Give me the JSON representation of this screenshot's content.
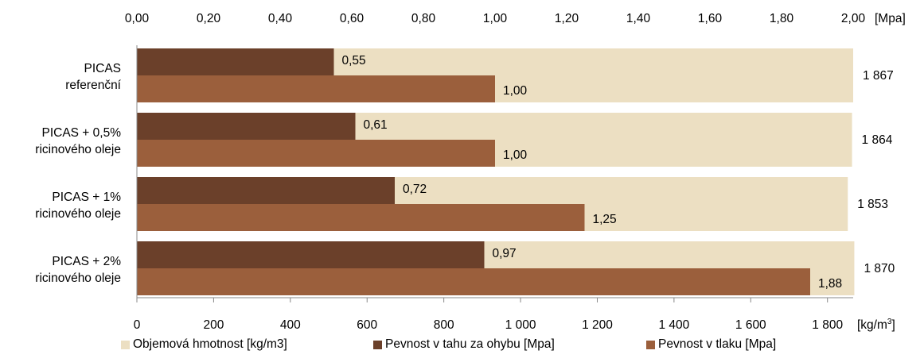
{
  "chart_data": {
    "type": "bar",
    "orientation": "horizontal",
    "categories": [
      [
        "PICAS",
        "referenční"
      ],
      [
        "PICAS + 0,5%",
        "ricinového oleje"
      ],
      [
        "PICAS + 1%",
        "ricinového oleje"
      ],
      [
        "PICAS + 2%",
        "ricinového oleje"
      ]
    ],
    "series": [
      {
        "name": "Objemová hmotnost [kg/m3]",
        "axis": "bottom",
        "color": "#ECDFC2",
        "values": [
          1867,
          1864,
          1853,
          1870
        ],
        "labels": [
          "1 867",
          "1 864",
          "1 853",
          "1 870"
        ]
      },
      {
        "name": "Pevnost v tahu za ohybu [Mpa]",
        "axis": "top",
        "color": "#6B402A",
        "values": [
          0.55,
          0.61,
          0.72,
          0.97
        ],
        "labels": [
          "0,55",
          "0,61",
          "0,72",
          "0,97"
        ]
      },
      {
        "name": "Pevnost v tlaku [Mpa]",
        "axis": "top",
        "color": "#9B5F3C",
        "values": [
          1.0,
          1.0,
          1.25,
          1.88
        ],
        "labels": [
          "1,00",
          "1,00",
          "1,25",
          "1,88"
        ]
      }
    ],
    "top_axis": {
      "min": 0,
      "max": 2.0,
      "ticks": [
        "0,00",
        "0,20",
        "0,40",
        "0,60",
        "0,80",
        "1,00",
        "1,20",
        "1,40",
        "1,60",
        "1,80",
        "2,00"
      ],
      "unit": "[Mpa]"
    },
    "bottom_axis": {
      "min": 0,
      "max": 1867,
      "tick_values": [
        0,
        200,
        400,
        600,
        800,
        1000,
        1200,
        1400,
        1600,
        1800
      ],
      "ticks": [
        "0",
        "200",
        "400",
        "600",
        "800",
        "1 000",
        "1 200",
        "1 400",
        "1 600",
        "1 800"
      ],
      "unit": "[kg/m",
      "unit_sup": "3",
      "unit_close": "]"
    },
    "grid": false,
    "legend_position": "bottom"
  }
}
